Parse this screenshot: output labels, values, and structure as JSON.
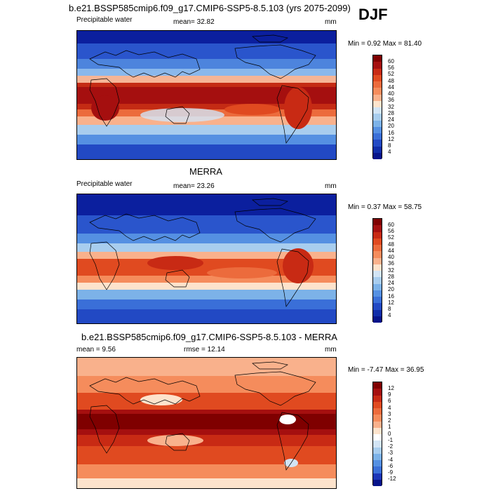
{
  "main_title": "b.e21.BSSP585cmip6.f09_g17.CMIP6-SSP5-8.5.103 (yrs 2075-2099)",
  "season": "DJF",
  "panels": [
    {
      "title": "",
      "variable": "Precipitable water",
      "stat": "mean=  32.82",
      "units": "mm",
      "minmax": "Min =   0.92 Max =  81.40",
      "levels": [
        "60",
        "56",
        "52",
        "48",
        "44",
        "40",
        "36",
        "32",
        "28",
        "24",
        "20",
        "16",
        "12",
        "8",
        "4"
      ]
    },
    {
      "title": "MERRA",
      "variable": "Precipitable water",
      "stat": "mean=  23.26",
      "units": "mm",
      "minmax": "Min =   0.37 Max =  58.75",
      "levels": [
        "60",
        "56",
        "52",
        "48",
        "44",
        "40",
        "36",
        "32",
        "28",
        "24",
        "20",
        "16",
        "12",
        "8",
        "4"
      ]
    },
    {
      "title": "b.e21.BSSP585cmip6.f09_g17.CMIP6-SSP5-8.5.103 - MERRA",
      "variable": "mean =   9.56",
      "stat": "rmse =  12.14",
      "units": "mm",
      "minmax": "Min =  -7.47 Max =  36.95",
      "levels": [
        "12",
        "9",
        "6",
        "4",
        "3",
        "2",
        "1",
        "0",
        "-1",
        "-2",
        "-3",
        "-4",
        "-6",
        "-9",
        "-12"
      ]
    }
  ],
  "colors": {
    "abs_scale": [
      "#7f0000",
      "#a50f0f",
      "#c82a14",
      "#e04a20",
      "#ec6b3c",
      "#f58c5c",
      "#f9b18c",
      "#fde3cc",
      "#d2e4f5",
      "#a8cdee",
      "#7cb2e8",
      "#5590e2",
      "#3a6fd8",
      "#2249c4",
      "#0f2ca8",
      "#06138a"
    ],
    "diff_scale": [
      "#7f0000",
      "#a50f0f",
      "#c82a14",
      "#e04a20",
      "#ec6b3c",
      "#f58c5c",
      "#f9b18c",
      "#fde3cc",
      "#ffffff",
      "#d2e4f5",
      "#a8cdee",
      "#7cb2e8",
      "#5590e2",
      "#3a6fd8",
      "#1b35b8",
      "#06138a"
    ]
  }
}
